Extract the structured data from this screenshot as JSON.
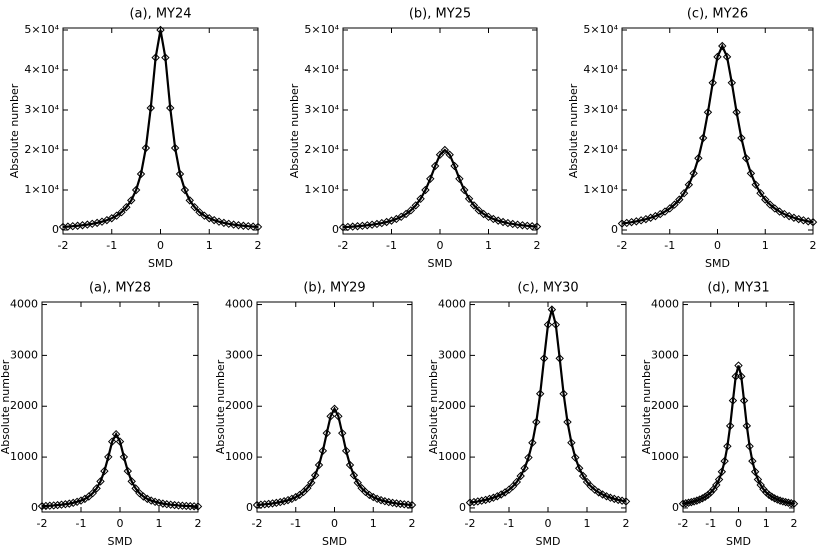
{
  "chart_data": [
    {
      "type": "scatter",
      "title": "(a), MY24",
      "x_label": "SMD",
      "y_label": "Absolute number",
      "marker": "diamond",
      "color": "#000000",
      "x": [
        -2,
        -1.9,
        -1.8,
        -1.7,
        -1.6,
        -1.5,
        -1.4,
        -1.3,
        -1.2,
        -1.1,
        -1,
        -0.9,
        -0.8,
        -0.7,
        -0.6,
        -0.5,
        -0.4,
        -0.3,
        -0.2,
        -0.1,
        0,
        0.1,
        0.2,
        0.3,
        0.4,
        0.5,
        0.6,
        0.7,
        0.8,
        0.9,
        1,
        1.1,
        1.2,
        1.3,
        1.4,
        1.5,
        1.6,
        1.7,
        1.8,
        1.9,
        2
      ],
      "values": [
        770,
        850,
        950,
        1060,
        1190,
        1350,
        1550,
        1780,
        2080,
        2460,
        2940,
        3580,
        4450,
        5700,
        7400,
        10000,
        14000,
        20500,
        30500,
        43100,
        50000,
        43100,
        30500,
        20500,
        14000,
        10000,
        7400,
        5700,
        4450,
        3580,
        2940,
        2460,
        2080,
        1780,
        1550,
        1350,
        1190,
        1060,
        950,
        850,
        770
      ],
      "xlim": [
        -2,
        2
      ],
      "xticks": [
        -2,
        -1,
        0,
        1,
        2
      ],
      "ylim": [
        -1000,
        50500
      ],
      "yticks": [
        0,
        {
          "value": 10000,
          "label": "1×10⁴"
        },
        {
          "value": 20000,
          "label": "2×10⁴"
        },
        {
          "value": 30000,
          "label": "3×10⁴"
        },
        {
          "value": 40000,
          "label": "4×10⁴"
        },
        {
          "value": 50000,
          "label": "5×10⁴"
        }
      ]
    },
    {
      "type": "scatter",
      "title": "(b), MY25",
      "x_label": "SMD",
      "y_label": "Absolute number",
      "marker": "diamond",
      "color": "#000000",
      "x": [
        -2,
        -1.9,
        -1.8,
        -1.7,
        -1.6,
        -1.5,
        -1.4,
        -1.3,
        -1.2,
        -1.1,
        -1,
        -0.9,
        -0.8,
        -0.7,
        -0.6,
        -0.5,
        -0.4,
        -0.3,
        -0.2,
        -0.1,
        0,
        0.1,
        0.2,
        0.3,
        0.4,
        0.5,
        0.6,
        0.7,
        0.8,
        0.9,
        1,
        1.1,
        1.2,
        1.3,
        1.4,
        1.5,
        1.6,
        1.7,
        1.8,
        1.9,
        2
      ],
      "values": [
        700,
        770,
        850,
        940,
        1050,
        1180,
        1330,
        1510,
        1730,
        2000,
        2340,
        2760,
        3300,
        4000,
        4920,
        6150,
        7800,
        10000,
        12800,
        16000,
        18820,
        20000,
        18820,
        16000,
        12800,
        10000,
        7800,
        6150,
        4920,
        4000,
        3300,
        2760,
        2340,
        2000,
        1730,
        1510,
        1330,
        1180,
        1050,
        940,
        850
      ],
      "xlim": [
        -2,
        2
      ],
      "xticks": [
        -2,
        -1,
        0,
        1,
        2
      ],
      "ylim": [
        -1000,
        50500
      ],
      "yticks": [
        0,
        {
          "value": 10000,
          "label": "1×10⁴"
        },
        {
          "value": 20000,
          "label": "2×10⁴"
        },
        {
          "value": 30000,
          "label": "3×10⁴"
        },
        {
          "value": 40000,
          "label": "4×10⁴"
        },
        {
          "value": 50000,
          "label": "5×10⁴"
        }
      ]
    },
    {
      "type": "scatter",
      "title": "(c), MY26",
      "x_label": "SMD",
      "y_label": "Absolute number",
      "marker": "diamond",
      "color": "#000000",
      "x": [
        -2,
        -1.9,
        -1.8,
        -1.7,
        -1.6,
        -1.5,
        -1.4,
        -1.3,
        -1.2,
        -1.1,
        -1,
        -0.9,
        -0.8,
        -0.7,
        -0.6,
        -0.5,
        -0.4,
        -0.3,
        -0.2,
        -0.1,
        0,
        0.1,
        0.2,
        0.3,
        0.4,
        0.5,
        0.6,
        0.7,
        0.8,
        0.9,
        1,
        1.1,
        1.2,
        1.3,
        1.4,
        1.5,
        1.6,
        1.7,
        1.8,
        1.9,
        2
      ],
      "values": [
        1610,
        1770,
        1960,
        2160,
        2420,
        2710,
        3060,
        3470,
        3980,
        4600,
        5380,
        6350,
        7590,
        9200,
        11320,
        14150,
        17940,
        23000,
        29440,
        36800,
        43290,
        46000,
        43290,
        36800,
        29440,
        23000,
        17940,
        14150,
        11320,
        9200,
        7590,
        6350,
        5380,
        4600,
        3980,
        3470,
        3060,
        2710,
        2420,
        2160,
        1960
      ],
      "xlim": [
        -2,
        2
      ],
      "xticks": [
        -2,
        -1,
        0,
        1,
        2
      ],
      "ylim": [
        -1000,
        50500
      ],
      "yticks": [
        0,
        {
          "value": 10000,
          "label": "1×10⁴"
        },
        {
          "value": 20000,
          "label": "2×10⁴"
        },
        {
          "value": 30000,
          "label": "3×10⁴"
        },
        {
          "value": 40000,
          "label": "4×10⁴"
        },
        {
          "value": 50000,
          "label": "5×10⁴"
        }
      ]
    },
    {
      "type": "scatter",
      "title": "(a), MY28",
      "x_label": "SMD",
      "y_label": "Absolute number",
      "marker": "diamond",
      "color": "#000000",
      "x": [
        -2,
        -1.9,
        -1.8,
        -1.7,
        -1.6,
        -1.5,
        -1.4,
        -1.3,
        -1.2,
        -1.1,
        -1,
        -0.9,
        -0.8,
        -0.7,
        -0.6,
        -0.5,
        -0.4,
        -0.3,
        -0.2,
        -0.1,
        0,
        0.1,
        0.2,
        0.3,
        0.4,
        0.5,
        0.6,
        0.7,
        0.8,
        0.9,
        1,
        1.1,
        1.2,
        1.3,
        1.4,
        1.5,
        1.6,
        1.7,
        1.8,
        1.9,
        2
      ],
      "values": [
        35,
        39,
        44,
        49,
        56,
        64,
        73,
        85,
        100,
        120,
        145,
        178,
        225,
        290,
        384,
        522,
        725,
        1003,
        1305,
        1450,
        1305,
        1003,
        725,
        522,
        384,
        290,
        225,
        178,
        145,
        120,
        100,
        85,
        73,
        64,
        56,
        49,
        44,
        39,
        35,
        32,
        29
      ],
      "xlim": [
        -2,
        2
      ],
      "xticks": [
        -2,
        -1,
        0,
        1,
        2
      ],
      "ylim": [
        -80,
        4050
      ],
      "yticks": [
        0,
        1000,
        2000,
        3000,
        4000
      ]
    },
    {
      "type": "scatter",
      "title": "(b), MY29",
      "x_label": "SMD",
      "y_label": "Absolute number",
      "marker": "diamond",
      "color": "#000000",
      "x": [
        -2,
        -1.9,
        -1.8,
        -1.7,
        -1.6,
        -1.5,
        -1.4,
        -1.3,
        -1.2,
        -1.1,
        -1,
        -0.9,
        -0.8,
        -0.7,
        -0.6,
        -0.5,
        -0.4,
        -0.3,
        -0.2,
        -0.1,
        0,
        0.1,
        0.2,
        0.3,
        0.4,
        0.5,
        0.6,
        0.7,
        0.8,
        0.9,
        1,
        1.1,
        1.2,
        1.3,
        1.4,
        1.5,
        1.6,
        1.7,
        1.8,
        1.9,
        2
      ],
      "values": [
        58,
        64,
        71,
        79,
        89,
        100,
        115,
        132,
        153,
        179,
        213,
        255,
        314,
        390,
        495,
        642,
        844,
        1123,
        1470,
        1802,
        1950,
        1802,
        1470,
        1123,
        844,
        642,
        495,
        390,
        314,
        255,
        213,
        179,
        153,
        132,
        115,
        100,
        89,
        79,
        71,
        64,
        58
      ],
      "xlim": [
        -2,
        2
      ],
      "xticks": [
        -2,
        -1,
        0,
        1,
        2
      ],
      "ylim": [
        -80,
        4050
      ],
      "yticks": [
        0,
        1000,
        2000,
        3000,
        4000
      ]
    },
    {
      "type": "scatter",
      "title": "(c), MY30",
      "x_label": "SMD",
      "y_label": "Absolute number",
      "marker": "diamond",
      "color": "#000000",
      "x": [
        -2,
        -1.9,
        -1.8,
        -1.7,
        -1.6,
        -1.5,
        -1.4,
        -1.3,
        -1.2,
        -1.1,
        -1,
        -0.9,
        -0.8,
        -0.7,
        -0.6,
        -0.5,
        -0.4,
        -0.3,
        -0.2,
        -0.1,
        0,
        0.1,
        0.2,
        0.3,
        0.4,
        0.5,
        0.6,
        0.7,
        0.8,
        0.9,
        1,
        1.1,
        1.2,
        1.3,
        1.4,
        1.5,
        1.6,
        1.7,
        1.8,
        1.9,
        2
      ],
      "values": [
        105,
        116,
        128,
        142,
        158,
        178,
        201,
        229,
        264,
        306,
        358,
        425,
        511,
        628,
        780,
        991,
        1283,
        1689,
        2246,
        2941,
        3604,
        3900,
        3604,
        2941,
        2246,
        1689,
        1283,
        991,
        780,
        628,
        511,
        425,
        358,
        306,
        264,
        229,
        201,
        178,
        158,
        142,
        128
      ],
      "xlim": [
        -2,
        2
      ],
      "xticks": [
        -2,
        -1,
        0,
        1,
        2
      ],
      "ylim": [
        -80,
        4050
      ],
      "yticks": [
        0,
        1000,
        2000,
        3000,
        4000
      ]
    },
    {
      "type": "scatter",
      "title": "(d), MY31",
      "x_label": "SMD",
      "y_label": "Absolute number",
      "marker": "diamond",
      "color": "#000000",
      "x": [
        -2,
        -1.9,
        -1.8,
        -1.7,
        -1.6,
        -1.5,
        -1.4,
        -1.3,
        -1.2,
        -1.1,
        -1,
        -0.9,
        -0.8,
        -0.7,
        -0.6,
        -0.5,
        -0.4,
        -0.3,
        -0.2,
        -0.1,
        0,
        0.1,
        0.2,
        0.3,
        0.4,
        0.5,
        0.6,
        0.7,
        0.8,
        0.9,
        1,
        1.1,
        1.2,
        1.3,
        1.4,
        1.5,
        1.6,
        1.7,
        1.8,
        1.9,
        2
      ],
      "values": [
        83,
        92,
        102,
        114,
        128,
        144,
        165,
        189,
        220,
        257,
        305,
        367,
        451,
        560,
        711,
        921,
        1212,
        1613,
        2111,
        2587,
        2800,
        2587,
        2111,
        1613,
        1212,
        921,
        711,
        560,
        451,
        367,
        305,
        257,
        220,
        189,
        165,
        144,
        128,
        114,
        102,
        92,
        83
      ],
      "xlim": [
        -2,
        2
      ],
      "xticks": [
        -2,
        -1,
        0,
        1,
        2
      ],
      "ylim": [
        -80,
        4050
      ],
      "yticks": [
        0,
        1000,
        2000,
        3000,
        4000
      ]
    }
  ]
}
